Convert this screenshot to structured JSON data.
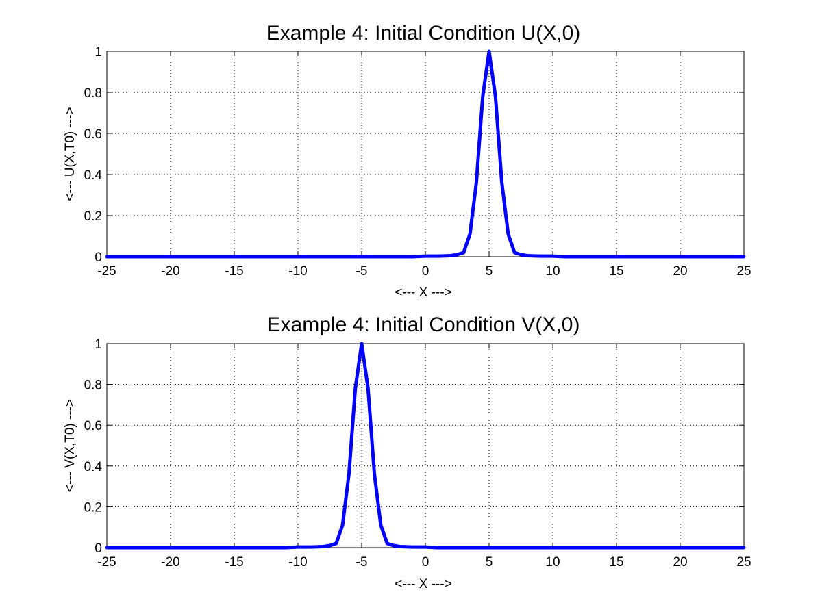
{
  "chart_data": [
    {
      "type": "line",
      "title": "Example 4: Initial Condition U(X,0)",
      "xlabel": "<--- X --->",
      "ylabel": "<--- U(X,T0) --->",
      "xlim": [
        -25,
        25
      ],
      "ylim": [
        0,
        1
      ],
      "xticks": [
        -25,
        -20,
        -15,
        -10,
        -5,
        0,
        5,
        10,
        15,
        20,
        25
      ],
      "yticks": [
        0,
        0.2,
        0.4,
        0.6,
        0.8,
        1
      ],
      "grid": true,
      "series": [
        {
          "color": "#0000ff",
          "x": [
            -25,
            -1,
            0,
            1,
            2,
            2.5,
            3,
            3.5,
            4,
            4.5,
            5,
            5.5,
            6,
            6.5,
            7,
            7.5,
            8,
            9,
            10,
            11,
            25
          ],
          "y": [
            0,
            0,
            0.003,
            0.003,
            0.005,
            0.01,
            0.02,
            0.11,
            0.36,
            0.78,
            1,
            0.78,
            0.36,
            0.11,
            0.02,
            0.01,
            0.005,
            0.003,
            0.003,
            0,
            0
          ]
        }
      ]
    },
    {
      "type": "line",
      "title": "Example 4: Initial Condition V(X,0)",
      "xlabel": "<--- X --->",
      "ylabel": "<--- V(X,T0) --->",
      "xlim": [
        -25,
        25
      ],
      "ylim": [
        0,
        1
      ],
      "xticks": [
        -25,
        -20,
        -15,
        -10,
        -5,
        0,
        5,
        10,
        15,
        20,
        25
      ],
      "yticks": [
        0,
        0.2,
        0.4,
        0.6,
        0.8,
        1
      ],
      "grid": true,
      "series": [
        {
          "color": "#0000ff",
          "x": [
            -25,
            -11,
            -10,
            -9,
            -8,
            -7.5,
            -7,
            -6.5,
            -6,
            -5.5,
            -5,
            -4.5,
            -4,
            -3.5,
            -3,
            -2.5,
            -2,
            -1,
            0,
            1,
            25
          ],
          "y": [
            0,
            0,
            0.003,
            0.003,
            0.005,
            0.01,
            0.02,
            0.11,
            0.36,
            0.78,
            1,
            0.78,
            0.36,
            0.11,
            0.02,
            0.01,
            0.005,
            0.003,
            0.003,
            0,
            0
          ]
        }
      ]
    }
  ]
}
